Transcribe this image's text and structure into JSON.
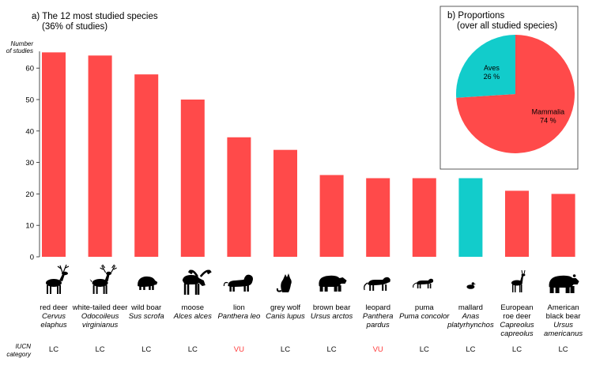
{
  "chart_data": [
    {
      "type": "bar",
      "title": "a) The 12 most studied species",
      "subtitle": "(36% of studies)",
      "ylabel_line1": "Number",
      "ylabel_line2": "of studies",
      "ylim": [
        0,
        65
      ],
      "yticks": [
        0,
        10,
        20,
        30,
        40,
        50,
        60
      ],
      "colors": {
        "Mammalia": "#ff4a4a",
        "Aves": "#12cccb"
      },
      "iucn_label_line1": "IUCN",
      "iucn_label_line2": "category",
      "iucn_colors": {
        "LC": "#111111",
        "VU": "#ff3b3b"
      },
      "species": [
        {
          "common": "red deer",
          "sci": [
            "Cervus",
            "elaphus"
          ],
          "value": 65,
          "iucn": "LC",
          "cls": "Mammalia",
          "icon": "red-deer-icon"
        },
        {
          "common": "white-tailed deer",
          "sci": [
            "Odocoileus",
            "virginianus"
          ],
          "value": 64,
          "iucn": "LC",
          "cls": "Mammalia",
          "icon": "white-tailed-deer-icon"
        },
        {
          "common": "wild boar",
          "sci": [
            "Sus scrofa"
          ],
          "value": 58,
          "iucn": "LC",
          "cls": "Mammalia",
          "icon": "wild-boar-icon"
        },
        {
          "common": "moose",
          "sci": [
            "Alces alces"
          ],
          "value": 50,
          "iucn": "LC",
          "cls": "Mammalia",
          "icon": "moose-icon"
        },
        {
          "common": "lion",
          "sci": [
            "Panthera leo"
          ],
          "value": 38,
          "iucn": "VU",
          "cls": "Mammalia",
          "icon": "lion-icon"
        },
        {
          "common": "grey wolf",
          "sci": [
            "Canis lupus"
          ],
          "value": 34,
          "iucn": "LC",
          "cls": "Mammalia",
          "icon": "grey-wolf-icon"
        },
        {
          "common": "brown bear",
          "sci": [
            "Ursus arctos"
          ],
          "value": 26,
          "iucn": "LC",
          "cls": "Mammalia",
          "icon": "brown-bear-icon"
        },
        {
          "common": "leopard",
          "sci": [
            "Panthera",
            "pardus"
          ],
          "value": 25,
          "iucn": "VU",
          "cls": "Mammalia",
          "icon": "leopard-icon"
        },
        {
          "common": "puma",
          "sci": [
            "Puma concolor"
          ],
          "value": 25,
          "iucn": "LC",
          "cls": "Mammalia",
          "icon": "puma-icon"
        },
        {
          "common": "mallard",
          "sci": [
            "Anas",
            "platyrhynchos"
          ],
          "value": 25,
          "iucn": "LC",
          "cls": "Aves",
          "icon": "mallard-icon"
        },
        {
          "common": [
            "European",
            "roe deer"
          ],
          "sci": [
            "Capreolus",
            "capreolus"
          ],
          "value": 21,
          "iucn": "LC",
          "cls": "Mammalia",
          "icon": "roe-deer-icon"
        },
        {
          "common": [
            "American",
            "black bear"
          ],
          "sci": [
            "Ursus",
            "americanus"
          ],
          "value": 20,
          "iucn": "LC",
          "cls": "Mammalia",
          "icon": "black-bear-icon"
        }
      ]
    },
    {
      "type": "pie",
      "title": "b) Proportions",
      "subtitle": "(over all studied species)",
      "slices": [
        {
          "label": "Mammalia",
          "percent_label": "74 %",
          "value": 74,
          "color": "#ff4a4a"
        },
        {
          "label": "Aves",
          "percent_label": "26 %",
          "value": 26,
          "color": "#12cccb"
        }
      ]
    }
  ]
}
